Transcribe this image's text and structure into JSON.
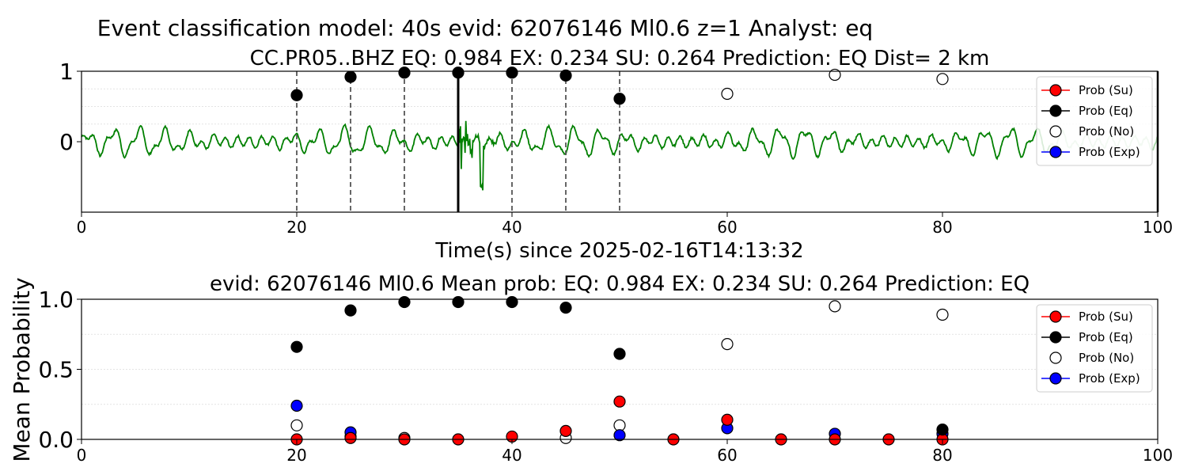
{
  "figure_title": "Event classification model: 40s evid: 62076146 Ml0.6 z=1 Analyst: eq",
  "chart_data": [
    {
      "type": "line",
      "title": "CC.PR05..BHZ   EQ: 0.984  EX: 0.234  SU: 0.264   Prediction: EQ    Dist= 2 km",
      "xlabel": "Time(s) since 2025-02-16T14:13:32",
      "ylabel": "",
      "xlim": [
        0,
        100
      ],
      "ylim": [
        -1,
        1
      ],
      "x_ticks": [
        "0",
        "20",
        "40",
        "60",
        "80",
        "100"
      ],
      "y_ticks": [
        "0",
        "1"
      ],
      "window_markers_dashed": [
        20,
        25,
        30,
        35,
        40,
        45,
        50
      ],
      "pick_marker_solid": 35,
      "waveform": {
        "color": "#008000",
        "note_x_range": [
          0,
          100
        ]
      },
      "series": [
        {
          "name": "Prob (Su)",
          "color": "#ff0000",
          "x": [],
          "y": []
        },
        {
          "name": "Prob (Eq)",
          "color": "#000000",
          "x": [
            20,
            25,
            30,
            35,
            40,
            45,
            50
          ],
          "y": [
            0.66,
            0.92,
            0.98,
            0.98,
            0.98,
            0.94,
            0.61
          ]
        },
        {
          "name": "Prob (No)",
          "color": "#ffffff",
          "x": [
            60,
            70,
            80
          ],
          "y": [
            0.68,
            0.95,
            0.89
          ]
        },
        {
          "name": "Prob (Exp)",
          "color": "#0000ff",
          "x": [],
          "y": []
        }
      ],
      "legend": "right",
      "grid": true
    },
    {
      "type": "scatter",
      "title": "evid: 62076146  Ml0.6   Mean prob:   EQ: 0.984  EX: 0.234  SU: 0.264   Prediction: EQ",
      "xlabel": "",
      "ylabel": "Mean Probability",
      "xlim": [
        0,
        100
      ],
      "ylim": [
        0,
        1
      ],
      "x_ticks": [
        "0",
        "20",
        "40",
        "60",
        "80",
        "100"
      ],
      "y_ticks": [
        "0.0",
        "0.5",
        "1.0"
      ],
      "series": [
        {
          "name": "Prob (Su)",
          "color": "#ff0000",
          "x": [
            20,
            25,
            30,
            35,
            40,
            45,
            50,
            55,
            60,
            65,
            70,
            75,
            80
          ],
          "y": [
            0.0,
            0.01,
            0.0,
            0.0,
            0.02,
            0.06,
            0.27,
            0.0,
            0.14,
            0.0,
            0.0,
            0.0,
            0.0
          ]
        },
        {
          "name": "Prob (Eq)",
          "color": "#000000",
          "x": [
            20,
            25,
            30,
            35,
            40,
            45,
            50,
            80
          ],
          "y": [
            0.66,
            0.92,
            0.98,
            0.98,
            0.98,
            0.94,
            0.61,
            0.07
          ]
        },
        {
          "name": "Prob (No)",
          "color": "#ffffff",
          "x": [
            20,
            25,
            30,
            45,
            50,
            60,
            70,
            80
          ],
          "y": [
            0.1,
            0.02,
            0.01,
            0.01,
            0.1,
            0.68,
            0.95,
            0.89
          ]
        },
        {
          "name": "Prob (Exp)",
          "color": "#0000ff",
          "x": [
            20,
            25,
            50,
            60,
            70,
            80
          ],
          "y": [
            0.24,
            0.05,
            0.03,
            0.08,
            0.04,
            0.04
          ]
        }
      ],
      "legend": "right",
      "grid": true
    }
  ]
}
